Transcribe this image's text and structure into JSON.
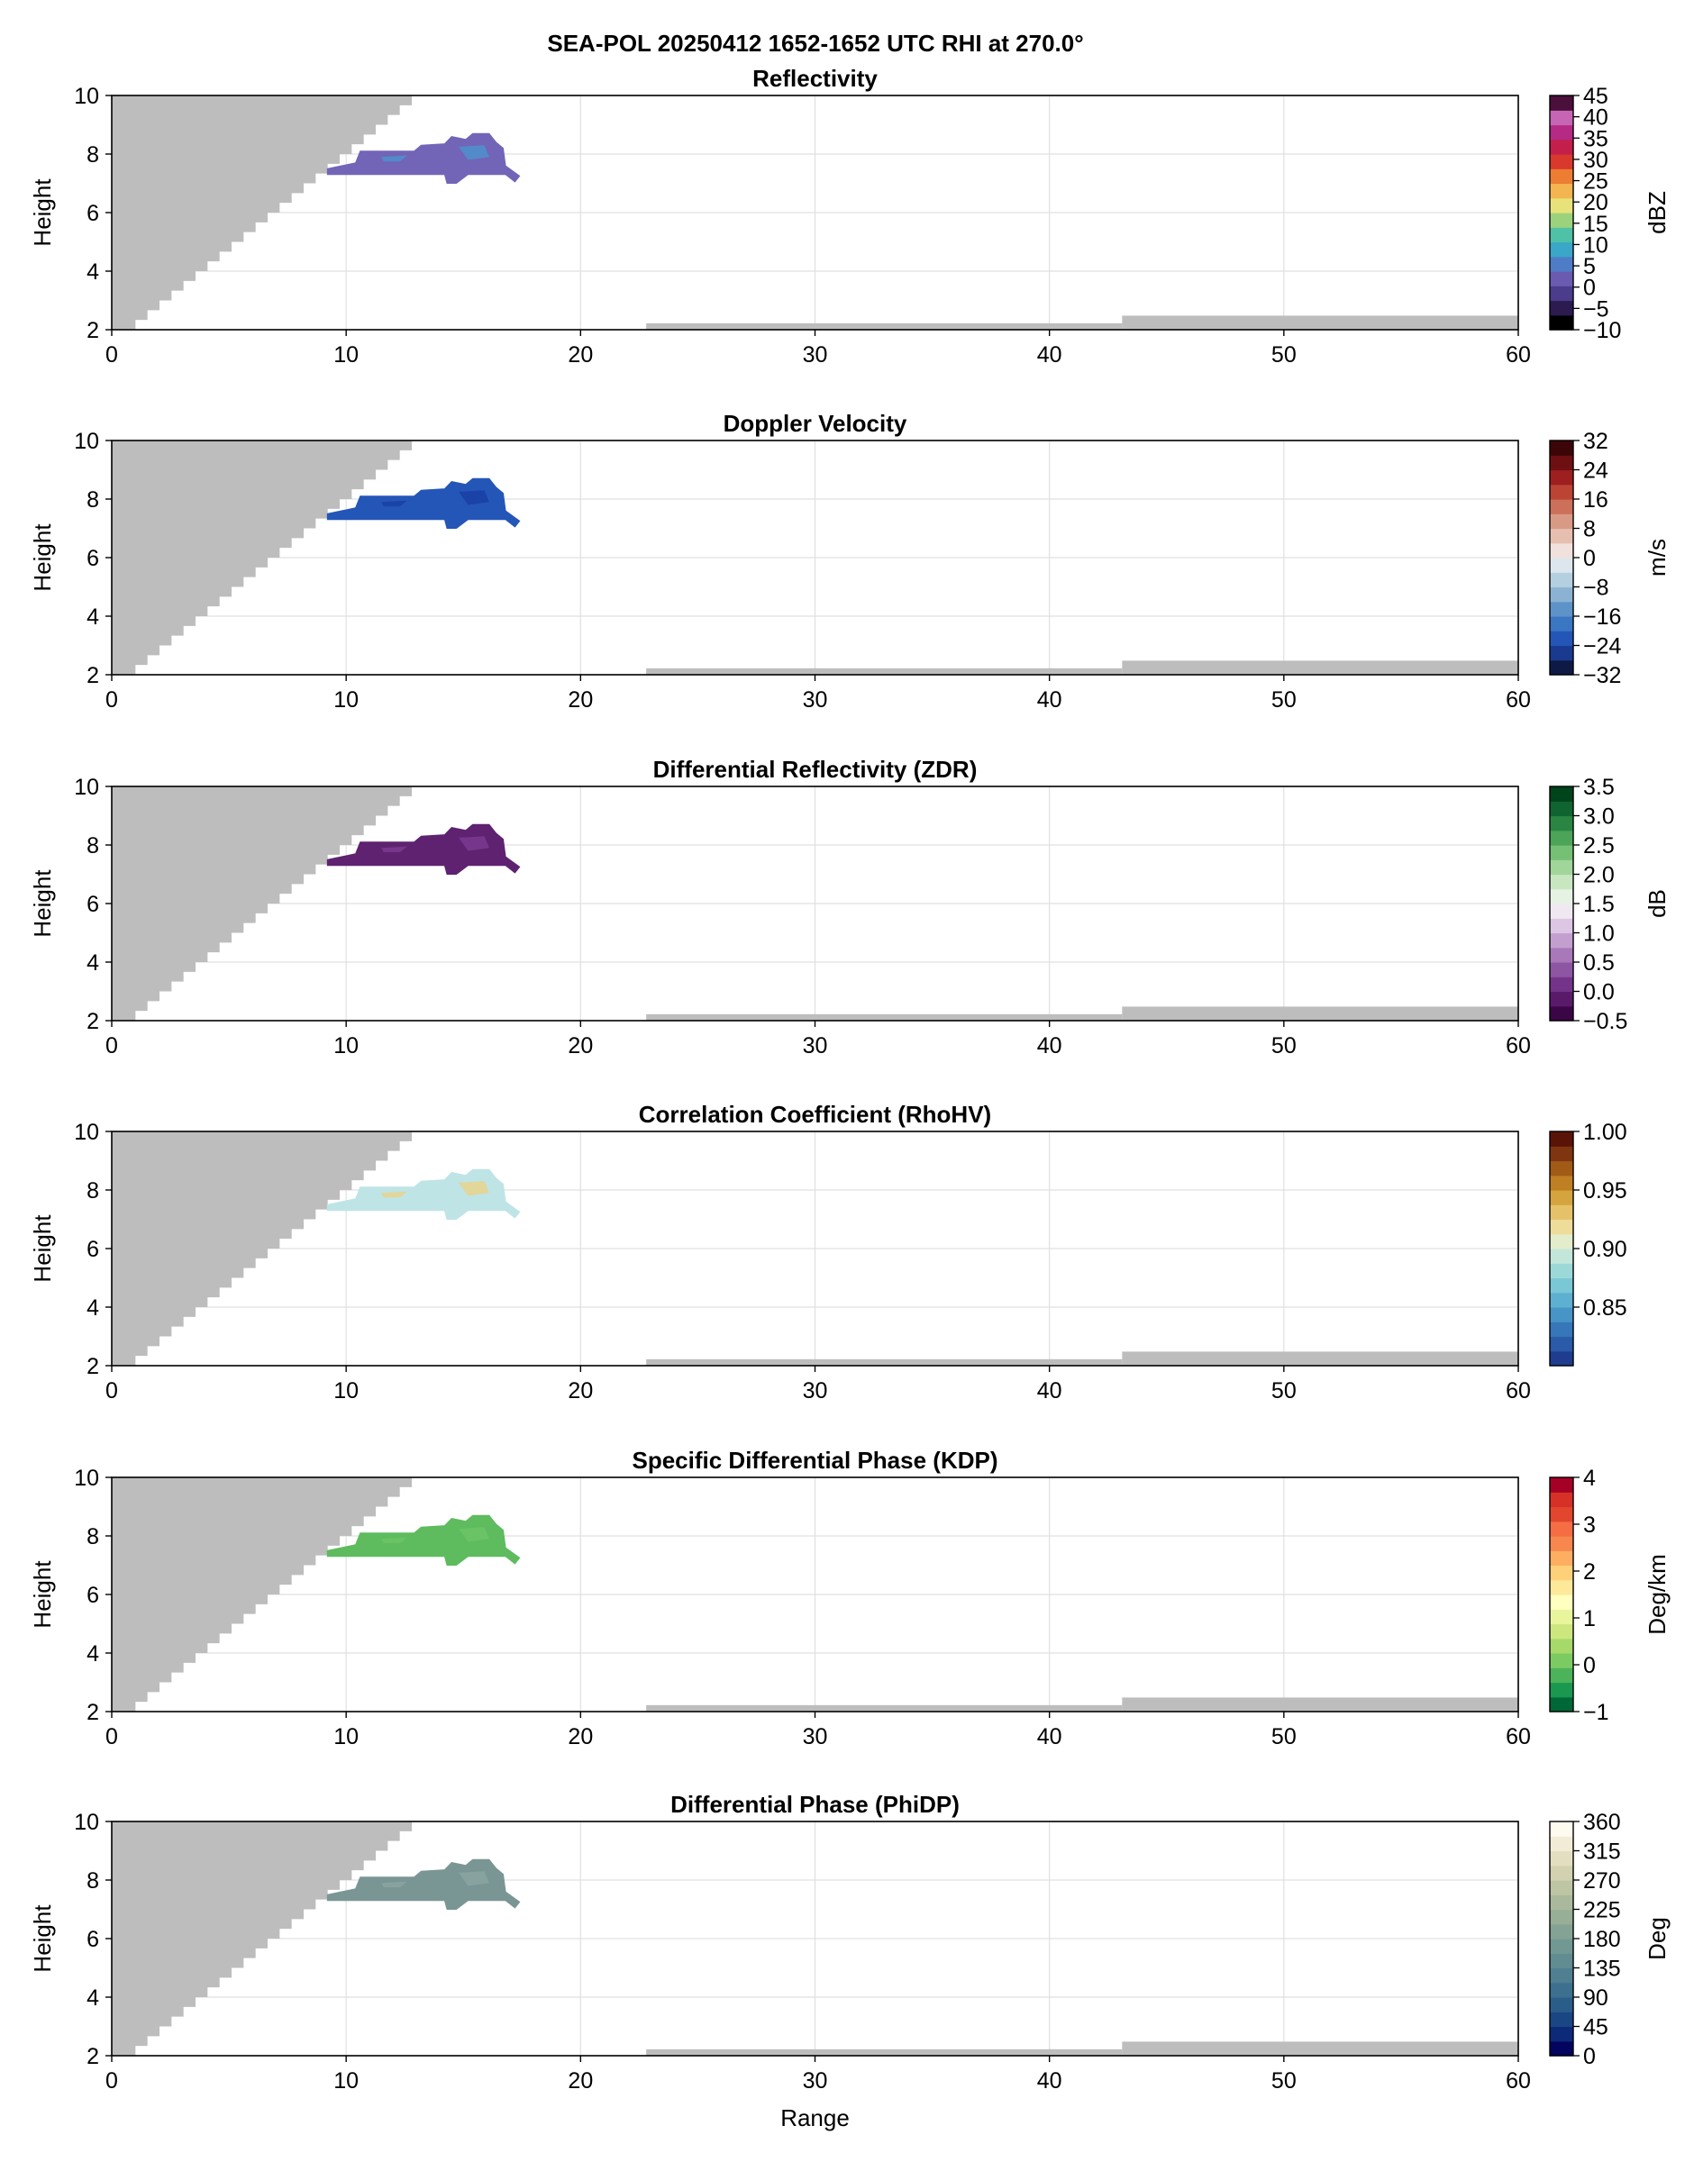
{
  "suptitle": "SEA-POL 20250412 1652-1652 UTC RHI at 270.0°",
  "chart_data": [
    {
      "type": "heatmap",
      "title": "Reflectivity",
      "xlabel": "",
      "ylabel": "Height",
      "xlim": [
        0,
        60
      ],
      "ylim": [
        2,
        10
      ],
      "xticks": [
        "0",
        "10",
        "20",
        "30",
        "40",
        "50",
        "60"
      ],
      "yticks": [
        "2",
        "4",
        "6",
        "8",
        "10"
      ],
      "grid": true,
      "colorbar": {
        "label": "dBZ",
        "range": [
          -10,
          45
        ],
        "ticks": [
          "-10",
          "-5",
          "0",
          "5",
          "10",
          "15",
          "20",
          "25",
          "30",
          "35",
          "40",
          "45"
        ],
        "colors": [
          "#000000",
          "#2b1b4f",
          "#4b3c8c",
          "#6a5bb0",
          "#4f7cc6",
          "#3aa6c8",
          "#4fc1a6",
          "#9bd37d",
          "#e8e27a",
          "#f3b54f",
          "#ec7d32",
          "#d9382d",
          "#c41f4a",
          "#b42a84",
          "#c765b5",
          "#4a0f3a"
        ],
        "echo_fill": "#7265b8",
        "echo_core": "#4e90cc"
      }
    },
    {
      "type": "heatmap",
      "title": "Doppler Velocity",
      "xlabel": "",
      "ylabel": "Height",
      "xlim": [
        0,
        60
      ],
      "ylim": [
        2,
        10
      ],
      "xticks": [
        "0",
        "10",
        "20",
        "30",
        "40",
        "50",
        "60"
      ],
      "yticks": [
        "2",
        "4",
        "6",
        "8",
        "10"
      ],
      "grid": true,
      "colorbar": {
        "label": "m/s",
        "range": [
          -32,
          32
        ],
        "ticks": [
          "-32",
          "-24",
          "-16",
          "-8",
          "0",
          "8",
          "16",
          "24",
          "32"
        ],
        "colors": [
          "#0e1a45",
          "#1a3a8f",
          "#2456b8",
          "#3a76c2",
          "#5d93c9",
          "#8bb2d2",
          "#b4cfe0",
          "#dde6ec",
          "#f1e1dc",
          "#e6bfb0",
          "#d99a85",
          "#cc6f5b",
          "#bb4434",
          "#9e1f1f",
          "#6e0f14",
          "#3d0508"
        ],
        "echo_fill": "#2456b8",
        "echo_core": "#1a3fa3"
      }
    },
    {
      "type": "heatmap",
      "title": "Differential Reflectivity (ZDR)",
      "xlabel": "",
      "ylabel": "Height",
      "xlim": [
        0,
        60
      ],
      "ylim": [
        2,
        10
      ],
      "xticks": [
        "0",
        "10",
        "20",
        "30",
        "40",
        "50",
        "60"
      ],
      "yticks": [
        "2",
        "4",
        "6",
        "8",
        "10"
      ],
      "grid": true,
      "colorbar": {
        "label": "dB",
        "range": [
          -0.5,
          3.5
        ],
        "ticks": [
          "-0.5",
          "0.0",
          "0.5",
          "1.0",
          "1.5",
          "2.0",
          "2.5",
          "3.0",
          "3.5"
        ],
        "colors": [
          "#3b0646",
          "#5a1a6a",
          "#74348a",
          "#8e55a3",
          "#a978b9",
          "#c39fcf",
          "#dcc6e3",
          "#f0e8f1",
          "#e6f2e3",
          "#c8e7c1",
          "#a1d69a",
          "#76c075",
          "#4ca458",
          "#2a8543",
          "#10642f",
          "#00441b"
        ],
        "echo_fill": "#5e2270",
        "echo_core": "#7a3a8f"
      }
    },
    {
      "type": "heatmap",
      "title": "Correlation Coefficient (RhoHV)",
      "xlabel": "",
      "ylabel": "Height",
      "xlim": [
        0,
        60
      ],
      "ylim": [
        2,
        10
      ],
      "xticks": [
        "0",
        "10",
        "20",
        "30",
        "40",
        "50",
        "60"
      ],
      "yticks": [
        "2",
        "4",
        "6",
        "8",
        "10"
      ],
      "grid": true,
      "colorbar": {
        "label": "",
        "range": [
          0.8,
          1.0
        ],
        "ticks": [
          "0.85",
          "0.90",
          "0.95",
          "1.00"
        ],
        "colors": [
          "#1f3c8f",
          "#2a5aa8",
          "#3577b8",
          "#4695c6",
          "#5eb0d0",
          "#7ac7d6",
          "#9dd8d9",
          "#c2e6d9",
          "#e3eccb",
          "#eedd9a",
          "#e5c26a",
          "#d6a43e",
          "#bf8024",
          "#a25a17",
          "#7f3510",
          "#5a1407"
        ],
        "echo_fill": "#bfe4e6",
        "echo_core": "#e8d48a"
      }
    },
    {
      "type": "heatmap",
      "title": "Specific Differential Phase (KDP)",
      "xlabel": "",
      "ylabel": "Height",
      "xlim": [
        0,
        60
      ],
      "ylim": [
        2,
        10
      ],
      "xticks": [
        "0",
        "10",
        "20",
        "30",
        "40",
        "50",
        "60"
      ],
      "yticks": [
        "2",
        "4",
        "6",
        "8",
        "10"
      ],
      "grid": true,
      "colorbar": {
        "label": "Deg/km",
        "range": [
          -1,
          4
        ],
        "ticks": [
          "-1",
          "0",
          "1",
          "2",
          "3",
          "4"
        ],
        "colors": [
          "#006837",
          "#1a9850",
          "#4cb35a",
          "#7ccb62",
          "#a6d96a",
          "#cde77f",
          "#e9f59d",
          "#ffffbf",
          "#fee99a",
          "#fed07a",
          "#fdae61",
          "#f7874f",
          "#f46d43",
          "#e2462f",
          "#d73027",
          "#a50026"
        ],
        "echo_fill": "#5ebb5e",
        "echo_core": "#6cc466"
      }
    },
    {
      "type": "heatmap",
      "title": "Differential Phase (PhiDP)",
      "xlabel": "Range",
      "ylabel": "Height",
      "xlim": [
        0,
        60
      ],
      "ylim": [
        2,
        10
      ],
      "xticks": [
        "0",
        "10",
        "20",
        "30",
        "40",
        "50",
        "60"
      ],
      "yticks": [
        "2",
        "4",
        "6",
        "8",
        "10"
      ],
      "grid": true,
      "colorbar": {
        "label": "Deg",
        "range": [
          0,
          360
        ],
        "ticks": [
          "0",
          "45",
          "90",
          "135",
          "180",
          "225",
          "270",
          "315",
          "360"
        ],
        "colors": [
          "#03045e",
          "#0c2a78",
          "#1b4684",
          "#2b5d8a",
          "#3c708e",
          "#4f7f90",
          "#618c92",
          "#729893",
          "#84a394",
          "#97ae97",
          "#aab99c",
          "#bec5a4",
          "#d2d1b0",
          "#e4dec0",
          "#f2ecd6",
          "#fdfaf0"
        ],
        "echo_fill": "#7a9694",
        "echo_core": "#8aa4a1"
      }
    }
  ]
}
